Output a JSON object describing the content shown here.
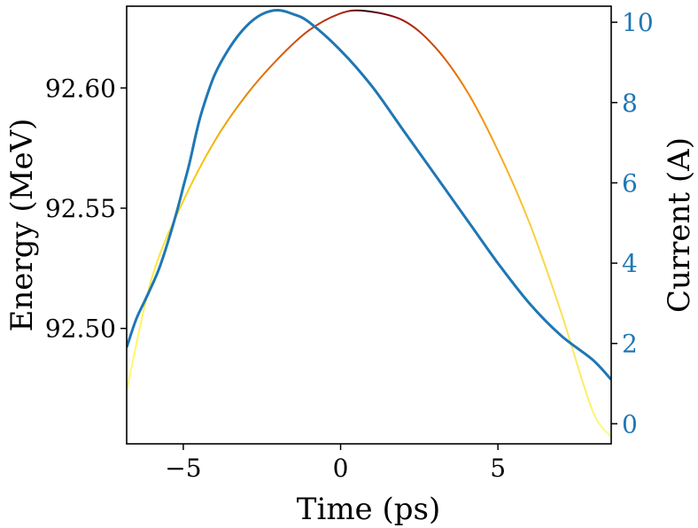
{
  "chart_data": {
    "type": "line",
    "title": "",
    "xlabel": "Time (ps)",
    "ylabel": "Energy (MeV)",
    "y2label": "Current (A)",
    "xlim": [
      -6.8,
      8.6
    ],
    "ylim": [
      92.452,
      92.634
    ],
    "y2lim": [
      -0.5,
      10.4
    ],
    "x_ticks": [
      -5,
      0,
      5
    ],
    "y_ticks": [
      92.5,
      92.55,
      92.6
    ],
    "y_tick_labels": [
      "92.50",
      "92.55",
      "92.60"
    ],
    "y2_ticks": [
      0,
      2,
      4,
      6,
      8,
      10
    ],
    "grid": false,
    "colors": {
      "current": "#1f77b4",
      "right_axis": "#1f77b4",
      "density_low": "#ffff70",
      "density_mid": "#f5a300",
      "density_high": "#a01010",
      "density_peak": "#200010"
    },
    "series": [
      {
        "axis": "right",
        "x": [
          -6.8,
          -6.5,
          -6.2,
          -5.8,
          -5.5,
          -5.2,
          -5.0,
          -4.8,
          -4.6,
          -4.4,
          -4.0,
          -3.5,
          -3.0,
          -2.5,
          -2.0,
          -1.5,
          -1.0,
          0.0,
          1.0,
          2.0,
          3.0,
          4.0,
          5.0,
          6.0,
          7.0,
          8.0,
          8.6
        ],
        "y": [
          1.9,
          2.6,
          3.1,
          3.8,
          4.5,
          5.3,
          5.9,
          6.5,
          7.2,
          7.8,
          8.7,
          9.4,
          9.9,
          10.2,
          10.3,
          10.2,
          10.0,
          9.3,
          8.4,
          7.3,
          6.2,
          5.1,
          4.0,
          3.0,
          2.2,
          1.6,
          1.1
        ]
      },
      {
        "axis": "left",
        "x": [
          -6.8,
          -6.0,
          -5.0,
          -4.0,
          -3.0,
          -2.0,
          -1.0,
          0.0,
          0.8,
          2.0,
          3.0,
          4.0,
          5.0,
          6.0,
          7.0,
          8.0,
          8.6
        ],
        "y": [
          92.474,
          92.521,
          92.553,
          92.578,
          92.597,
          92.612,
          92.624,
          92.631,
          92.632,
          92.628,
          92.617,
          92.599,
          92.574,
          92.544,
          92.507,
          92.466,
          92.455
        ]
      }
    ]
  }
}
